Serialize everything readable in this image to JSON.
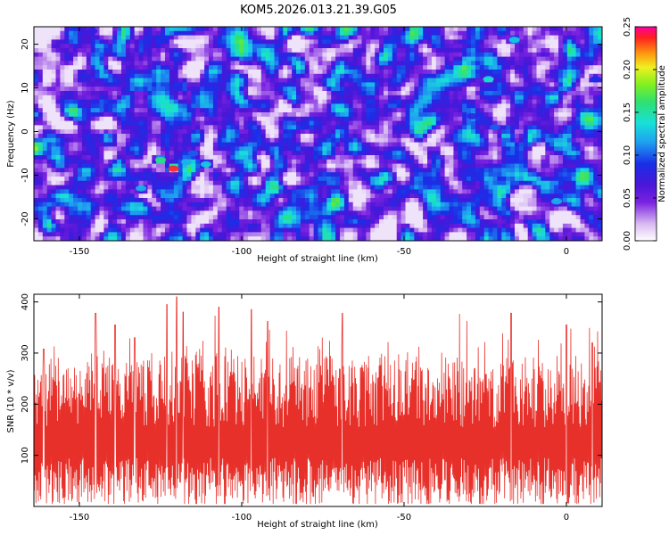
{
  "title": "KOM5.2026.013.21.39.G05",
  "colors": {
    "snr_line": "#e8302a",
    "frame": "#000000"
  },
  "chart_data": [
    {
      "type": "heatmap",
      "title": "KOM5.2026.013.21.39.G05",
      "xlabel": "Height of straight line (km)",
      "ylabel": "Frequency (Hz)",
      "xlim": [
        -164,
        11
      ],
      "ylim": [
        -25,
        24
      ],
      "xticks": [
        -150,
        -100,
        -50,
        0
      ],
      "xtick_labels": [
        "-150",
        "-100",
        "-50",
        "0"
      ],
      "yticks": [
        -20,
        -10,
        0,
        10,
        20
      ],
      "ytick_labels": [
        "-20",
        "-10",
        "0",
        "10",
        "20"
      ],
      "colorbar": {
        "label": "Normalized spectral amplitude",
        "range": [
          0,
          0.25
        ],
        "ticks": [
          0,
          0.05,
          0.1,
          0.15,
          0.2,
          0.25
        ],
        "tick_labels": [
          "0.00",
          "0.05",
          "0.10",
          "0.15",
          "0.20",
          "0.25"
        ],
        "colormap": "rainbow (white-violet-blue-cyan-green-yellow-red)"
      },
      "background_level": 0.04,
      "features": [
        {
          "x": -121,
          "y": -8.5,
          "value": 0.24
        },
        {
          "x": -125,
          "y": -6.5,
          "value": 0.16
        },
        {
          "x": -117,
          "y": -7.0,
          "value": 0.12
        },
        {
          "x": -111,
          "y": -7.5,
          "value": 0.13
        },
        {
          "x": -131,
          "y": -13.0,
          "value": 0.12
        },
        {
          "x": -115,
          "y": -5.0,
          "value": 0.1
        },
        {
          "x": -24,
          "y": 12.0,
          "value": 0.14
        },
        {
          "x": -16,
          "y": 21.0,
          "value": 0.13
        },
        {
          "x": -3,
          "y": -16.0,
          "value": 0.12
        },
        {
          "x": -22,
          "y": 1.0,
          "value": 0.1
        },
        {
          "x": -29,
          "y": 3.5,
          "value": 0.08
        },
        {
          "x": 9,
          "y": 12.0,
          "value": 0.09
        },
        {
          "x": -146,
          "y": 23.0,
          "value": 0.08
        }
      ]
    },
    {
      "type": "line",
      "xlabel": "Height of straight line (km)",
      "ylabel": "SNR (10 * v/v)",
      "xlim": [
        -164,
        11
      ],
      "ylim": [
        0,
        415
      ],
      "xticks": [
        -150,
        -100,
        -50,
        0
      ],
      "xtick_labels": [
        "-150",
        "-100",
        "-50",
        "0"
      ],
      "yticks": [
        100,
        200,
        300,
        400
      ],
      "ytick_labels": [
        "100",
        "200",
        "300",
        "400"
      ],
      "series": [
        {
          "name": "SNR",
          "baseline_mean": 130,
          "approx_range": [
            5,
            410
          ],
          "peaks": [
            {
              "x": -120,
              "y": 410
            },
            {
              "x": -123,
              "y": 395
            },
            {
              "x": -118,
              "y": 380
            },
            {
              "x": -145,
              "y": 378
            },
            {
              "x": -107,
              "y": 390
            },
            {
              "x": -97,
              "y": 385
            },
            {
              "x": -69,
              "y": 378
            },
            {
              "x": -17,
              "y": 378
            },
            {
              "x": 0,
              "y": 355
            },
            {
              "x": -139,
              "y": 355
            },
            {
              "x": -92,
              "y": 362
            },
            {
              "x": -133,
              "y": 330
            },
            {
              "x": -161,
              "y": 308
            },
            {
              "x": 8,
              "y": 320
            }
          ]
        }
      ]
    }
  ]
}
